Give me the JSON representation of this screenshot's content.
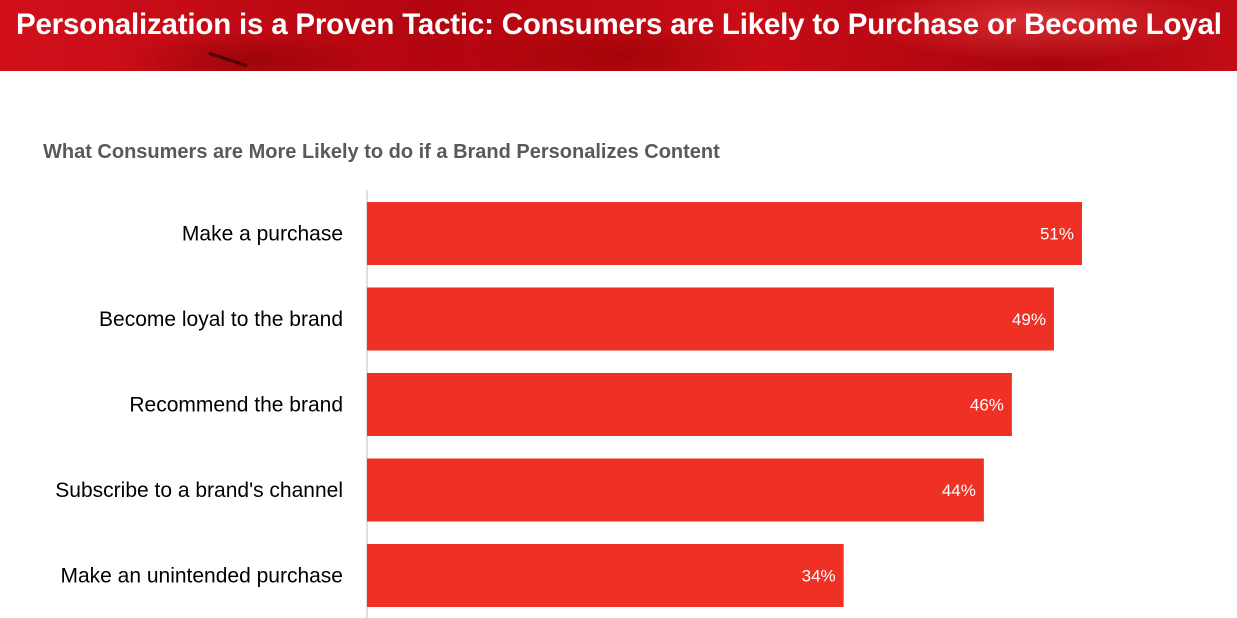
{
  "header": {
    "title": "Personalization is a Proven Tactic: Consumers are Likely to Purchase or Become Loyal"
  },
  "colors": {
    "bar": "#ee3124",
    "header": "#c00d16",
    "axis": "#bfbfbf"
  },
  "chart_data": {
    "type": "bar",
    "orientation": "horizontal",
    "title": "What Consumers are More Likely to do if a Brand Personalizes Content",
    "categories": [
      "Make a purchase",
      "Become loyal to the brand",
      "Recommend the brand",
      "Subscribe to a brand's channel",
      "Make an unintended purchase"
    ],
    "values": [
      51,
      49,
      46,
      44,
      34
    ],
    "value_labels": [
      "51%",
      "49%",
      "46%",
      "44%",
      "34%"
    ],
    "unit": "%",
    "xlim": [
      0,
      62
    ],
    "grid": false,
    "legend": "none"
  }
}
